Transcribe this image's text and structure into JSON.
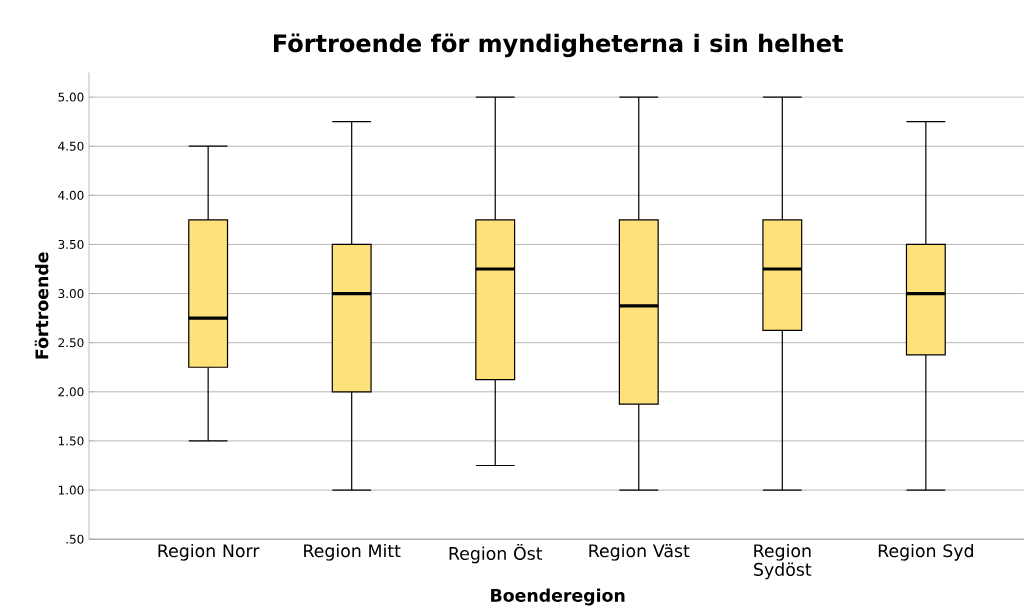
{
  "chart_data": {
    "type": "box",
    "title": "Förtroende för myndigheterna i sin helhet",
    "xlabel": "Boenderegion",
    "ylabel": "Förtroende",
    "categories": [
      "Region Norr",
      "Region Mitt",
      "Region Öst",
      "Region Väst",
      "Region Sydöst",
      "Region Syd"
    ],
    "boxes": [
      {
        "low": 1.5,
        "q1": 2.25,
        "median": 2.75,
        "q3": 3.75,
        "high": 4.5
      },
      {
        "low": 1.0,
        "q1": 2.0,
        "median": 3.0,
        "q3": 3.5,
        "high": 4.75
      },
      {
        "low": 1.25,
        "q1": 2.125,
        "median": 3.25,
        "q3": 3.75,
        "high": 5.0
      },
      {
        "low": 1.0,
        "q1": 1.875,
        "median": 2.875,
        "q3": 3.75,
        "high": 5.0
      },
      {
        "low": 1.0,
        "q1": 2.625,
        "median": 3.25,
        "q3": 3.75,
        "high": 5.0
      },
      {
        "low": 1.0,
        "q1": 2.375,
        "median": 3.0,
        "q3": 3.5,
        "high": 4.75
      }
    ],
    "color": "#ffe17a",
    "ylim": [
      0.5,
      5.25
    ],
    "yticks": [
      {
        "value": 0.5,
        "label": ".50"
      },
      {
        "value": 1.0,
        "label": "1.00"
      },
      {
        "value": 1.5,
        "label": "1.50"
      },
      {
        "value": 2.0,
        "label": "2.00"
      },
      {
        "value": 2.5,
        "label": "2.50"
      },
      {
        "value": 3.0,
        "label": "3.00"
      },
      {
        "value": 3.5,
        "label": "3.50"
      },
      {
        "value": 4.0,
        "label": "4.00"
      },
      {
        "value": 4.5,
        "label": "4.50"
      },
      {
        "value": 5.0,
        "label": "5.00"
      }
    ],
    "grid": "y"
  }
}
